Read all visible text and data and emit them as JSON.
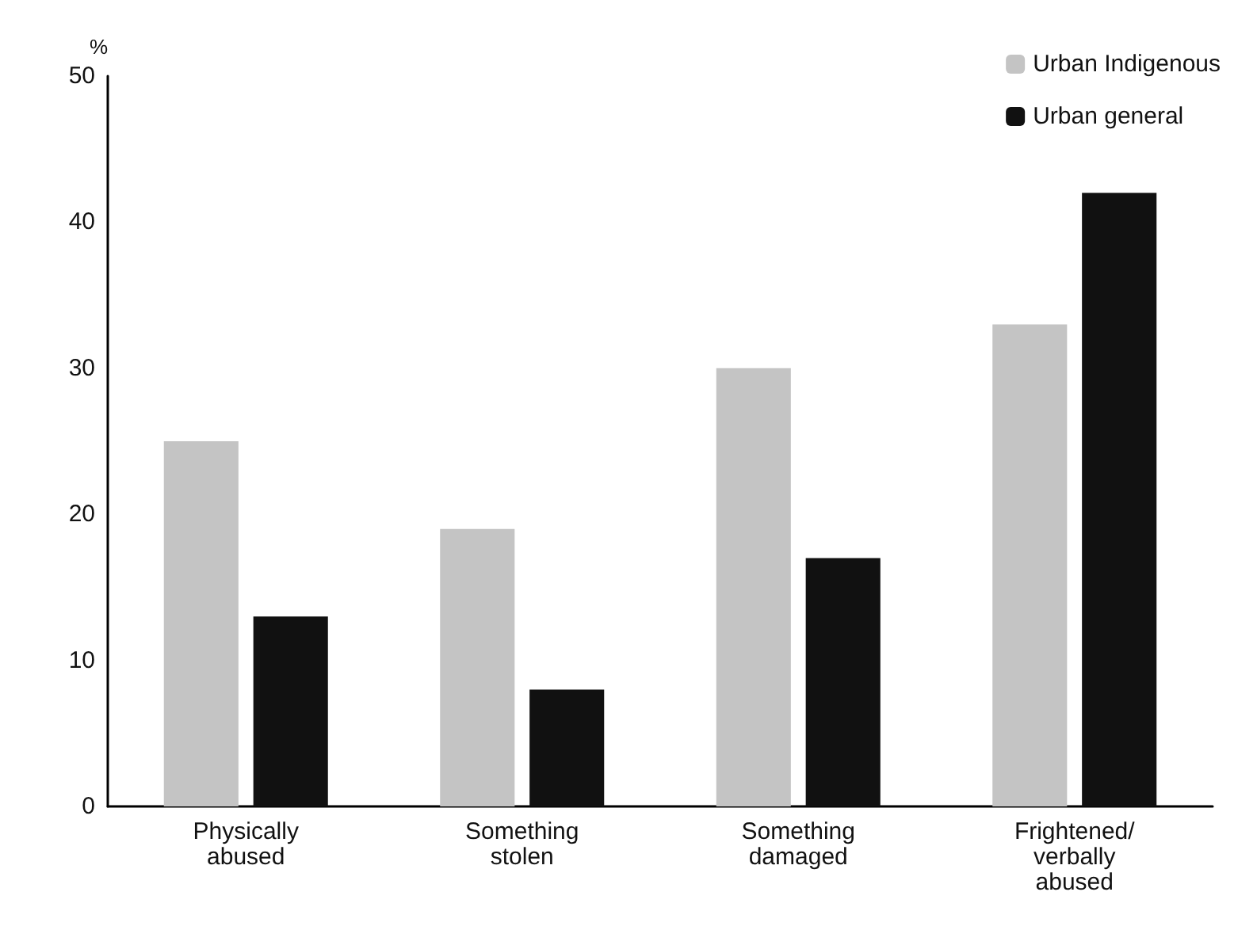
{
  "chart_data": {
    "type": "bar",
    "ylabel": "%",
    "categories": [
      "Physically abused",
      "Something stolen",
      "Something damaged",
      "Frightened/verbally abused"
    ],
    "series": [
      {
        "name": "Urban Indigenous",
        "color": "#c4c4c4",
        "values": [
          25,
          19,
          30,
          33
        ]
      },
      {
        "name": "Urban general",
        "color": "#111111",
        "values": [
          13,
          8,
          17,
          42
        ]
      }
    ],
    "ylim": [
      0,
      50
    ],
    "yticks": [
      0,
      10,
      20,
      30,
      40,
      50
    ],
    "grid": false,
    "legend": "top right"
  }
}
